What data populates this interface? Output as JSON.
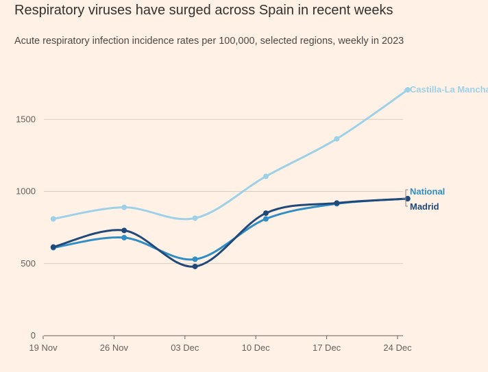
{
  "header": {
    "title": "Respiratory viruses have surged across Spain in recent weeks",
    "subtitle": "Acute respiratory infection incidence rates per 100,000, selected regions, weekly in 2023"
  },
  "chart_data": {
    "type": "line",
    "title": "Respiratory viruses have surged across Spain in recent weeks",
    "subtitle": "Acute respiratory infection incidence rates per 100,000, selected regions, weekly in 2023",
    "categories": [
      "19 Nov",
      "26 Nov",
      "03 Dec",
      "10 Dec",
      "17 Dec",
      "24 Dec"
    ],
    "x_points": [
      "2023-11-20",
      "2023-11-27",
      "2023-12-04",
      "2023-12-11",
      "2023-12-18",
      "2023-12-25"
    ],
    "yticks": [
      0,
      500,
      1000,
      1500
    ],
    "ylim": [
      0,
      1800
    ],
    "grid": true,
    "legend": "direct labels at line ends",
    "series": [
      {
        "name": "Castilla-La Mancha",
        "color": "#9dd1e8",
        "values": [
          810,
          890,
          815,
          1105,
          1365,
          1705
        ]
      },
      {
        "name": "National",
        "color": "#2e8ec5",
        "values": [
          610,
          680,
          530,
          810,
          915,
          950
        ]
      },
      {
        "name": "Madrid",
        "color": "#20497a",
        "values": [
          615,
          730,
          480,
          850,
          920,
          950
        ]
      }
    ]
  }
}
